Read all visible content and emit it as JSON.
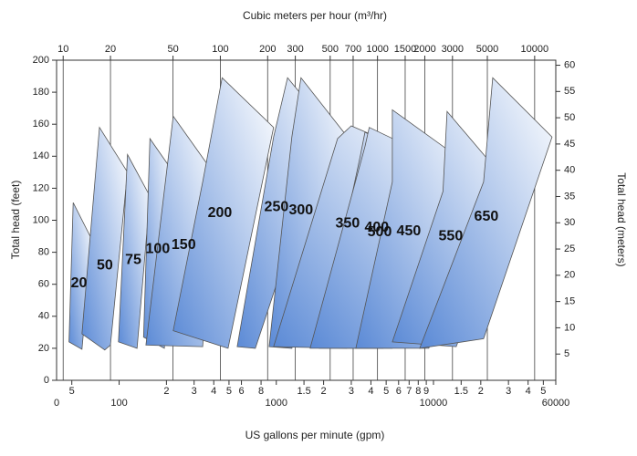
{
  "chart_data": {
    "type": "area",
    "title": "Cubic meters per hour (m³/hr)",
    "xlabel": "US gallons per minute (gpm)",
    "ylabel": "Total head (feet)",
    "y2label": "Total head (meters)",
    "x_origin_label": "0",
    "xscale": "log",
    "xlim": [
      40,
      60000
    ],
    "xticks": [
      {
        "value": 50,
        "label": "5"
      },
      100,
      {
        "value": 200,
        "label": "2"
      },
      {
        "value": 300,
        "label": "3"
      },
      {
        "value": 400,
        "label": "4"
      },
      {
        "value": 500,
        "label": "5"
      },
      {
        "value": 600,
        "label": "6"
      },
      {
        "value": 800,
        "label": "8"
      },
      1000,
      {
        "value": 1500,
        "label": "1.5"
      },
      {
        "value": 2000,
        "label": "2"
      },
      {
        "value": 3000,
        "label": "3"
      },
      {
        "value": 4000,
        "label": "4"
      },
      {
        "value": 5000,
        "label": "5"
      },
      {
        "value": 6000,
        "label": "6"
      },
      {
        "value": 7000,
        "label": "7"
      },
      {
        "value": 8000,
        "label": "8"
      },
      {
        "value": 9000,
        "label": "9"
      },
      10000,
      {
        "value": 15000,
        "label": "1.5"
      },
      {
        "value": 20000,
        "label": "2"
      },
      {
        "value": 30000,
        "label": "3"
      },
      {
        "value": 40000,
        "label": "4"
      },
      {
        "value": 50000,
        "label": "5"
      },
      60000
    ],
    "x2lim": [
      9.08,
      13627
    ],
    "x2ticks": [
      10,
      20,
      50,
      100,
      200,
      300,
      500,
      700,
      1000,
      1500,
      2000,
      3000,
      5000,
      10000
    ],
    "ylim": [
      0,
      200
    ],
    "yticks": [
      0,
      20,
      40,
      60,
      80,
      100,
      120,
      140,
      160,
      180,
      200
    ],
    "y2lim": [
      0,
      60.96
    ],
    "y2ticks": [
      5,
      10,
      15,
      20,
      25,
      30,
      35,
      40,
      45,
      50,
      55,
      60
    ],
    "grid": true,
    "gradient": [
      "#5b8ad6",
      "#ffffff"
    ],
    "regions": [
      {
        "label": "20",
        "x": [
          51,
          67,
          58,
          48
        ],
        "y": [
          111,
          88,
          19.4,
          24
        ]
      },
      {
        "label": "50",
        "x": [
          75,
          113,
          88,
          81,
          58
        ],
        "y": [
          158,
          130,
          22,
          19,
          29
        ]
      },
      {
        "label": "75",
        "x": [
          113,
          157,
          130,
          99
        ],
        "y": [
          141,
          115,
          20,
          24
        ]
      },
      {
        "label": "100",
        "x": [
          157,
          221,
          194,
          143
        ],
        "y": [
          151,
          130,
          20,
          27
        ]
      },
      {
        "label": "150",
        "x": [
          221,
          395,
          340,
          148
        ],
        "y": [
          165,
          130,
          21,
          22
        ]
      },
      {
        "label": "200",
        "x": [
          452,
          961,
          493,
          221,
          340
        ],
        "y": [
          189,
          158,
          20,
          31,
          124
        ]
      },
      {
        "label": "250",
        "x": [
          1180,
          2146,
          736,
          564,
          961
        ],
        "y": [
          189,
          158,
          20,
          21,
          152
        ]
      },
      {
        "label": "300",
        "x": [
          1436,
          3000,
          1256,
          900,
          1256
        ],
        "y": [
          189,
          149,
          20,
          21,
          152
        ]
      },
      {
        "label": "350",
        "x": [
          3000,
          9343,
          2805,
          961,
          2454
        ],
        "y": [
          159,
          138,
          20,
          21,
          151
        ]
      },
      {
        "label": "500",
        "x": [
          3665,
          15000,
          5473,
          1876,
          3435
        ],
        "y": [
          155,
          126,
          20,
          20,
          141
        ]
      },
      {
        "label": "400",
        "x": [
          3900,
          13953,
          4788,
          1641,
          3665
        ],
        "y": [
          158,
          132,
          20,
          20,
          146
        ]
      },
      {
        "label": "450",
        "x": [
          5473,
          18231,
          9343,
          3206,
          5473
        ],
        "y": [
          169,
          132,
          20,
          20,
          124
        ]
      },
      {
        "label": "550",
        "x": [
          12208,
          33000,
          13953,
          5473,
          11500
        ],
        "y": [
          168,
          118,
          21,
          24,
          118
        ]
      },
      {
        "label": "650",
        "x": [
          23819,
          56800,
          20838,
          8174,
          20838
        ],
        "y": [
          189,
          152,
          26,
          20,
          124
        ]
      }
    ]
  }
}
